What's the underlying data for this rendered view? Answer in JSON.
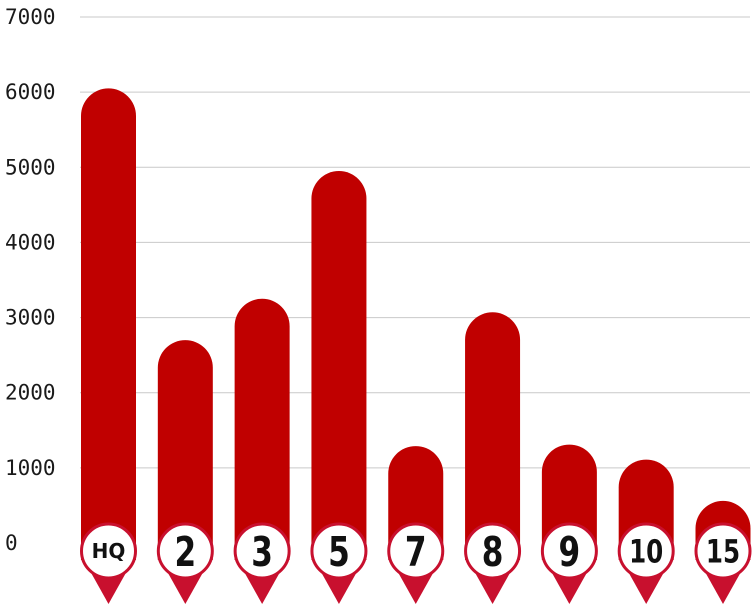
{
  "chart_data": {
    "type": "bar",
    "categories": [
      "HQ",
      "2",
      "3",
      "5",
      "7",
      "8",
      "9",
      "10",
      "15"
    ],
    "values": [
      6050,
      2700,
      3250,
      4950,
      1290,
      3070,
      1310,
      1110,
      560
    ],
    "ylim": [
      0,
      7000
    ],
    "yticks": [
      0,
      1000,
      2000,
      3000,
      4000,
      5000,
      6000,
      7000
    ],
    "grid": true,
    "legend": "none",
    "bar_style": "rounded-top",
    "category_marker": "map-pin"
  },
  "colors": {
    "bar": "#c00000",
    "marker_border": "#c8102e",
    "marker_fill": "#ffffff",
    "grid": "#c9c9c9",
    "text": "#1a1a1a"
  }
}
